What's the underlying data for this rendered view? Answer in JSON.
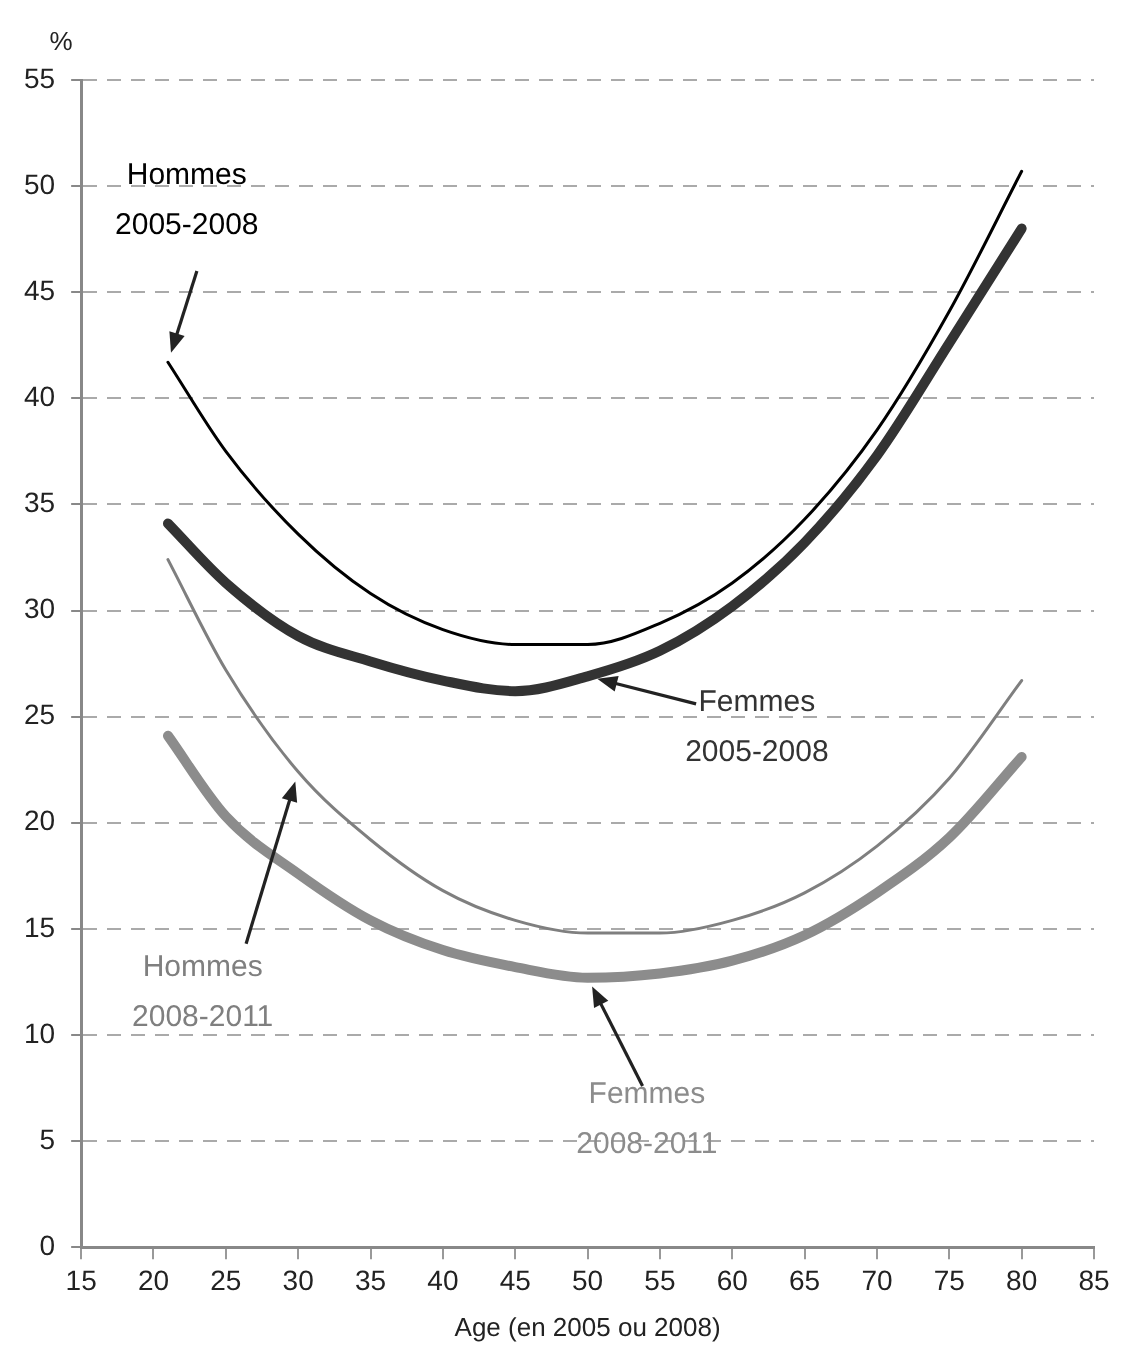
{
  "chart_data": {
    "type": "line",
    "xlabel": "Age (en 2005 ou 2008)",
    "ylabel": "%",
    "x": [
      21,
      25,
      30,
      35,
      40,
      45,
      50,
      55,
      60,
      65,
      70,
      75,
      80
    ],
    "series": [
      {
        "name": "Hommes 2005-2008",
        "color": "#000000",
        "values": [
          41.7,
          37.5,
          33.6,
          30.8,
          29.1,
          28.4,
          28.4,
          29.4,
          31.3,
          34.3,
          38.5,
          44.1,
          50.7
        ]
      },
      {
        "name": "Femmes 2005-2008",
        "color": "#333333",
        "values": [
          34.1,
          31.3,
          28.8,
          27.6,
          26.7,
          26.2,
          26.9,
          28.1,
          30.2,
          33.2,
          37.3,
          42.6,
          48.0
        ]
      },
      {
        "name": "Hommes 2008-2011",
        "color": "#7f7f7f",
        "values": [
          32.4,
          27.2,
          22.4,
          19.2,
          16.8,
          15.4,
          14.8,
          14.8,
          15.4,
          16.7,
          18.9,
          22.1,
          26.7
        ]
      },
      {
        "name": "Femmes 2008-2011",
        "color": "#8c8c8c",
        "values": [
          24.1,
          20.3,
          17.6,
          15.4,
          14.0,
          13.2,
          12.7,
          12.9,
          13.5,
          14.7,
          16.7,
          19.3,
          23.1
        ]
      }
    ],
    "xlim": [
      15,
      85
    ],
    "xticks": [
      15,
      20,
      25,
      30,
      35,
      40,
      45,
      50,
      55,
      60,
      65,
      70,
      75,
      80,
      85
    ],
    "ylim": [
      0,
      55
    ],
    "yticks": [
      0,
      5,
      10,
      15,
      20,
      25,
      30,
      35,
      40,
      45,
      50,
      55
    ],
    "grid": "y",
    "legend": false,
    "marker": "none",
    "line_style": "solid"
  }
}
